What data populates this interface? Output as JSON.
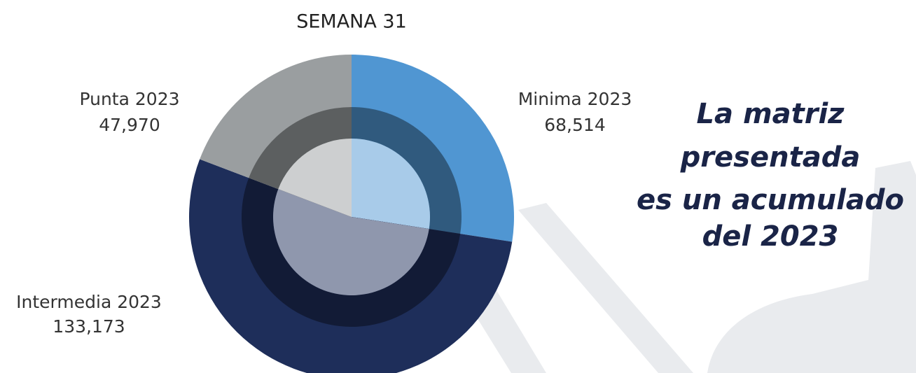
{
  "chart_data": {
    "type": "pie",
    "title": "SEMANA 31",
    "categories": [
      "Minima 2023",
      "Intermedia 2023",
      "Punta 2023"
    ],
    "values": [
      68514,
      133173,
      47970
    ],
    "value_labels": [
      "68,514",
      "133,173",
      "47,970"
    ],
    "colors": [
      "#5096d2",
      "#1e2e5a",
      "#9a9ea0"
    ],
    "annotation": [
      "La matriz",
      "presentada",
      "es un acumulado",
      "del 2023"
    ]
  }
}
